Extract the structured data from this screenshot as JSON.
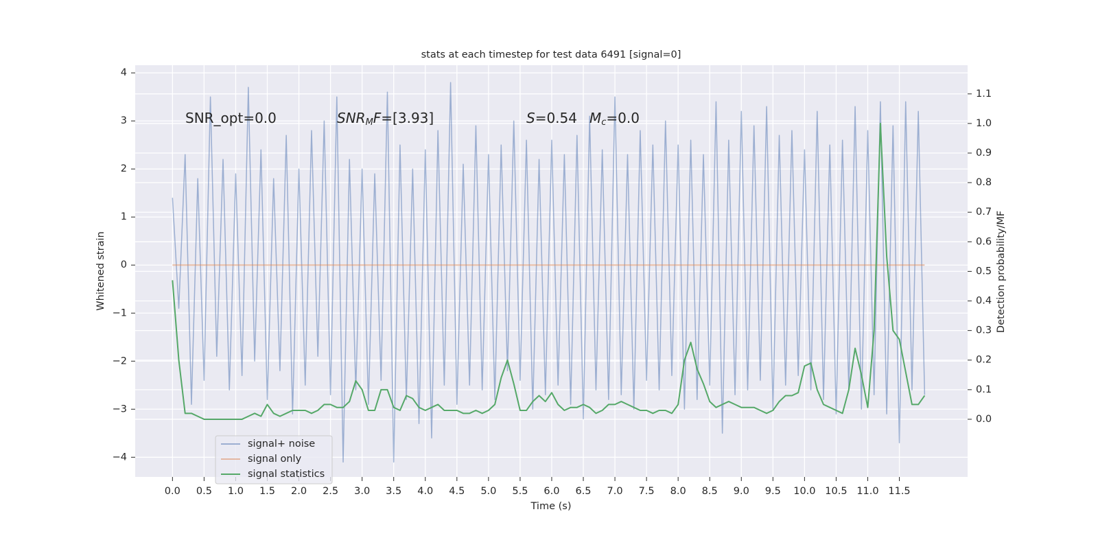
{
  "chart_data": {
    "type": "line",
    "title": "stats at each timestep for test data 6491 [signal=0]",
    "x_label": "Time (s)",
    "y_label": "Whitened strain",
    "y2_label": "Detection probability/MF",
    "annotations": [
      [
        {
          "text": "SNR_opt=0.0"
        }
      ],
      [
        {
          "text": "SNR",
          "italic": true
        },
        {
          "text": "M",
          "italic": true,
          "sub": true
        },
        {
          "text": "F",
          "italic": true
        },
        {
          "text": "=[3.93]"
        }
      ],
      [
        {
          "text": "S",
          "italic": true
        },
        {
          "text": "=0.54"
        }
      ],
      [
        {
          "text": "M",
          "italic": true
        },
        {
          "text": "c",
          "italic": true,
          "sub": true
        },
        {
          "text": "=0.0"
        }
      ]
    ],
    "x": [
      0.0,
      0.1,
      0.2,
      0.3,
      0.4,
      0.5,
      0.6,
      0.7,
      0.8,
      0.9,
      1.0,
      1.1,
      1.2,
      1.3,
      1.4,
      1.5,
      1.6,
      1.7,
      1.8,
      1.9,
      2.0,
      2.1,
      2.2,
      2.3,
      2.4,
      2.5,
      2.6,
      2.7,
      2.8,
      2.9,
      3.0,
      3.1,
      3.2,
      3.3,
      3.4,
      3.5,
      3.6,
      3.7,
      3.8,
      3.9,
      4.0,
      4.1,
      4.2,
      4.3,
      4.4,
      4.5,
      4.6,
      4.7,
      4.8,
      4.9,
      5.0,
      5.1,
      5.2,
      5.3,
      5.4,
      5.5,
      5.6,
      5.7,
      5.8,
      5.9,
      6.0,
      6.1,
      6.2,
      6.3,
      6.4,
      6.5,
      6.6,
      6.7,
      6.8,
      6.9,
      7.0,
      7.1,
      7.2,
      7.3,
      7.4,
      7.5,
      7.6,
      7.7,
      7.8,
      7.9,
      8.0,
      8.1,
      8.2,
      8.3,
      8.4,
      8.5,
      8.6,
      8.7,
      8.8,
      8.9,
      9.0,
      9.1,
      9.2,
      9.3,
      9.4,
      9.5,
      9.6,
      9.7,
      9.8,
      9.9,
      10.0,
      10.1,
      10.2,
      10.3,
      10.4,
      10.5,
      10.6,
      10.7,
      10.8,
      10.9,
      11.0,
      11.1,
      11.2,
      11.3,
      11.4,
      11.5,
      11.6,
      11.7,
      11.8,
      11.9
    ],
    "series": [
      {
        "name": "signal+ noise",
        "color": "#4c72b0",
        "alpha": 0.5,
        "values": [
          1.4,
          -0.9,
          2.3,
          -2.9,
          1.8,
          -2.4,
          3.5,
          -1.9,
          2.2,
          -2.6,
          1.9,
          -2.3,
          3.7,
          -2.0,
          2.4,
          -2.8,
          1.8,
          -2.2,
          2.7,
          -3.1,
          2.0,
          -2.5,
          2.8,
          -1.9,
          3.0,
          -2.7,
          3.5,
          -4.1,
          2.2,
          -2.6,
          2.0,
          -2.9,
          1.9,
          -2.4,
          3.6,
          -4.1,
          2.5,
          -2.8,
          2.0,
          -3.3,
          2.4,
          -3.6,
          2.8,
          -2.5,
          3.8,
          -2.9,
          2.1,
          -2.5,
          2.9,
          -2.6,
          2.3,
          -2.8,
          2.5,
          -2.2,
          3.0,
          -2.4,
          2.6,
          -3.0,
          2.2,
          -2.7,
          2.6,
          -2.5,
          2.3,
          -2.9,
          2.7,
          -3.2,
          3.1,
          -2.6,
          2.4,
          -2.8,
          3.5,
          -2.7,
          2.3,
          -3.0,
          2.8,
          -2.4,
          2.5,
          -2.6,
          3.0,
          -2.3,
          2.5,
          -3.0,
          2.6,
          -2.8,
          2.3,
          -2.5,
          3.4,
          -3.5,
          2.6,
          -2.7,
          3.2,
          -2.6,
          2.9,
          -2.4,
          3.3,
          -3.0,
          2.7,
          -2.5,
          2.8,
          -2.3,
          2.4,
          -2.6,
          3.2,
          -2.8,
          2.5,
          -3.1,
          2.6,
          -2.6,
          3.3,
          -3.0,
          2.8,
          -2.7,
          3.4,
          -3.1,
          2.9,
          -3.7,
          3.4,
          -2.6,
          3.2,
          -2.7
        ]
      },
      {
        "name": "signal only",
        "color": "#dd8452",
        "alpha": 0.5,
        "values": [
          0,
          0,
          0,
          0,
          0,
          0,
          0,
          0,
          0,
          0,
          0,
          0,
          0,
          0,
          0,
          0,
          0,
          0,
          0,
          0,
          0,
          0,
          0,
          0,
          0,
          0,
          0,
          0,
          0,
          0,
          0,
          0,
          0,
          0,
          0,
          0,
          0,
          0,
          0,
          0,
          0,
          0,
          0,
          0,
          0,
          0,
          0,
          0,
          0,
          0,
          0,
          0,
          0,
          0,
          0,
          0,
          0,
          0,
          0,
          0,
          0,
          0,
          0,
          0,
          0,
          0,
          0,
          0,
          0,
          0,
          0,
          0,
          0,
          0,
          0,
          0,
          0,
          0,
          0,
          0,
          0,
          0,
          0,
          0,
          0,
          0,
          0,
          0,
          0,
          0,
          0,
          0,
          0,
          0,
          0,
          0,
          0,
          0,
          0,
          0,
          0,
          0,
          0,
          0,
          0,
          0,
          0,
          0,
          0,
          0,
          0,
          0,
          0,
          0,
          0,
          0,
          0,
          0,
          0,
          0
        ]
      },
      {
        "name": "signal statistics",
        "color": "#55a868",
        "axis": "y2",
        "values": [
          0.47,
          0.2,
          0.02,
          0.02,
          0.01,
          0.0,
          0.0,
          0.0,
          0.0,
          0.0,
          0.0,
          0.0,
          0.01,
          0.02,
          0.01,
          0.05,
          0.02,
          0.01,
          0.02,
          0.03,
          0.03,
          0.03,
          0.02,
          0.03,
          0.05,
          0.05,
          0.04,
          0.04,
          0.06,
          0.13,
          0.1,
          0.03,
          0.03,
          0.1,
          0.1,
          0.04,
          0.03,
          0.08,
          0.07,
          0.04,
          0.03,
          0.04,
          0.05,
          0.03,
          0.03,
          0.03,
          0.02,
          0.02,
          0.03,
          0.02,
          0.03,
          0.05,
          0.14,
          0.2,
          0.12,
          0.03,
          0.03,
          0.06,
          0.08,
          0.06,
          0.09,
          0.05,
          0.03,
          0.04,
          0.04,
          0.05,
          0.04,
          0.02,
          0.03,
          0.05,
          0.05,
          0.06,
          0.05,
          0.04,
          0.03,
          0.03,
          0.02,
          0.03,
          0.03,
          0.02,
          0.05,
          0.2,
          0.26,
          0.17,
          0.12,
          0.06,
          0.04,
          0.05,
          0.06,
          0.05,
          0.04,
          0.04,
          0.04,
          0.03,
          0.02,
          0.03,
          0.06,
          0.08,
          0.08,
          0.09,
          0.18,
          0.19,
          0.1,
          0.05,
          0.04,
          0.03,
          0.02,
          0.1,
          0.24,
          0.15,
          0.04,
          0.3,
          1.0,
          0.55,
          0.3,
          0.27,
          0.16,
          0.05,
          0.05,
          0.08
        ]
      }
    ],
    "xlim": [
      -0.59,
      12.58
    ],
    "xticks": [
      {
        "value": 0,
        "label": "0.0"
      },
      0.5,
      {
        "value": 1,
        "label": "1.0"
      },
      1.5,
      {
        "value": 2,
        "label": "2.0"
      },
      2.5,
      {
        "value": 3,
        "label": "3.0"
      },
      3.5,
      {
        "value": 4,
        "label": "4.0"
      },
      4.5,
      {
        "value": 5,
        "label": "5.0"
      },
      5.5,
      {
        "value": 6,
        "label": "6.0"
      },
      6.5,
      {
        "value": 7,
        "label": "7.0"
      },
      7.5,
      {
        "value": 8,
        "label": "8.0"
      },
      8.5,
      {
        "value": 9,
        "label": "9.0"
      },
      9.5,
      {
        "value": 10,
        "label": "10.0"
      },
      10.5,
      {
        "value": 11,
        "label": "11.0"
      },
      11.5
    ],
    "ylim": [
      -4.41,
      4.16
    ],
    "yticks": [
      {
        "value": -4,
        "label": "−4"
      },
      {
        "value": -3,
        "label": "−3"
      },
      {
        "value": -2,
        "label": "−2"
      },
      {
        "value": -1,
        "label": "−1"
      },
      0,
      1,
      2,
      3,
      4
    ],
    "y2lim": [
      -0.195,
      1.197
    ],
    "y2ticks": [
      {
        "value": 0,
        "label": "0.0"
      },
      0.1,
      0.2,
      0.3,
      0.4,
      0.5,
      0.6,
      0.7,
      0.8,
      0.9,
      {
        "value": 1,
        "label": "1.0"
      },
      1.1
    ],
    "grid": true,
    "legend": "lower left"
  }
}
